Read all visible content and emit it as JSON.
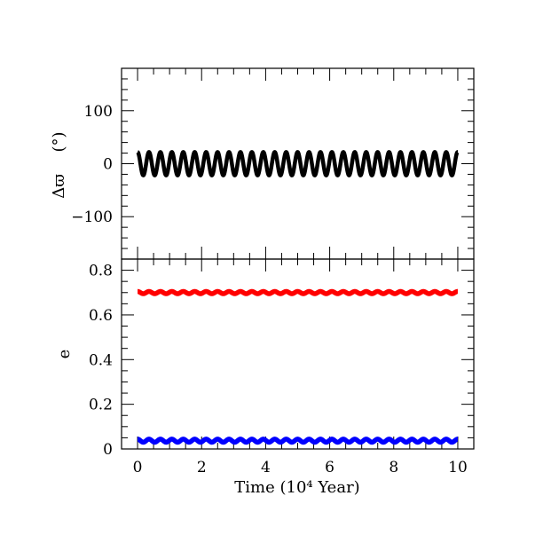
{
  "chart_data": [
    {
      "type": "line",
      "panel": "top",
      "xlabel": "",
      "ylabel_main": "Δϖ",
      "ylabel_unit": "(°)",
      "xlim": [
        -0.5,
        10.5
      ],
      "ylim": [
        -180,
        180
      ],
      "yticks": [
        -100,
        0,
        100
      ],
      "ytick_labels": [
        "−100",
        "0",
        "100"
      ],
      "x_minor_step": 0.5,
      "y_minor_step": 20,
      "grid": false,
      "series": [
        {
          "color": "#000000",
          "mean": 0,
          "amplitude": 22,
          "period": 0.357,
          "x_start": 0,
          "x_end": 10,
          "note_style": "thick oscillating line"
        }
      ]
    },
    {
      "type": "line",
      "panel": "bottom",
      "xlabel": "Time (10⁴ Year)",
      "ylabel": "e",
      "xlim": [
        -0.5,
        10.5
      ],
      "ylim": [
        0,
        0.85
      ],
      "xticks": [
        0,
        2,
        4,
        6,
        8,
        10
      ],
      "xtick_labels": [
        "0",
        "2",
        "4",
        "6",
        "8",
        "10"
      ],
      "yticks": [
        0,
        0.2,
        0.4,
        0.6,
        0.8
      ],
      "ytick_labels": [
        "0",
        "0.2",
        "0.4",
        "0.6",
        "0.8"
      ],
      "x_minor_step": 0.5,
      "y_minor_step": 0.05,
      "grid": false,
      "series": [
        {
          "color": "#ff0000",
          "mean": 0.7,
          "amplitude": 0.005,
          "period": 0.357,
          "x_start": 0,
          "x_end": 10
        },
        {
          "color": "#0000ff",
          "mean": 0.037,
          "amplitude": 0.007,
          "period": 0.357,
          "x_start": 0,
          "x_end": 10
        }
      ]
    }
  ]
}
